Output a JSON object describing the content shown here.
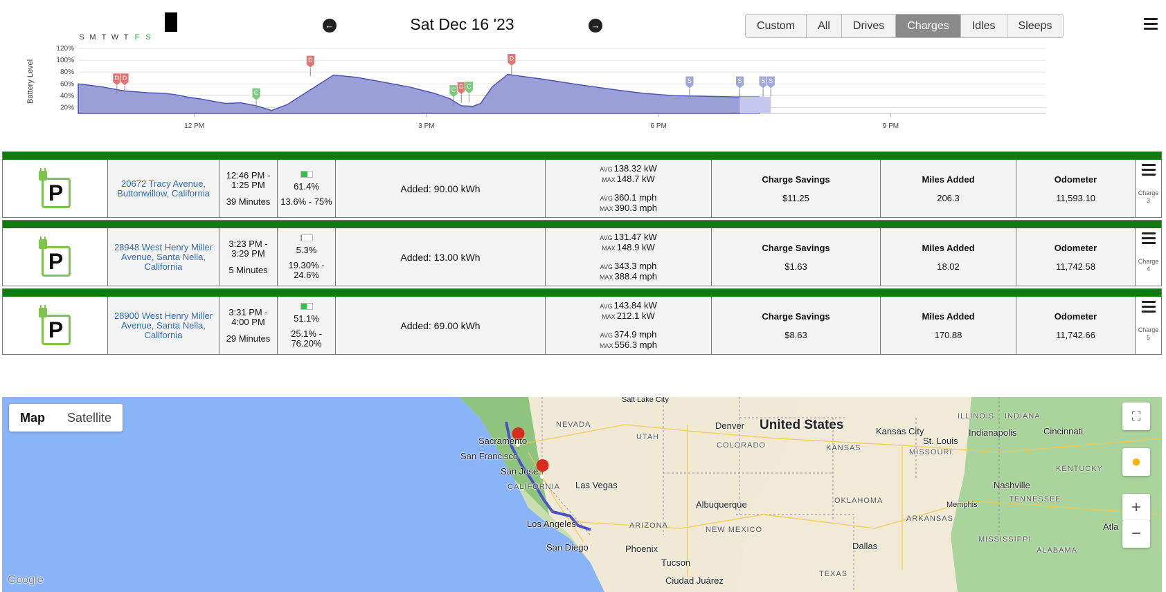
{
  "calendar": {
    "weekdays": [
      "S",
      "M",
      "T",
      "W",
      "T",
      "F",
      "S"
    ]
  },
  "header": {
    "date": "Sat Dec 16 '23",
    "prev_icon": "arrow-left-circle-icon",
    "next_icon": "arrow-right-circle-icon",
    "filters": [
      "Custom",
      "All",
      "Drives",
      "Charges",
      "Idles",
      "Sleeps"
    ],
    "active_filter": "Charges",
    "menu_icon": "hamburger-menu-icon"
  },
  "chart_data": {
    "type": "area",
    "ylabel": "Battery Level",
    "y_ticks": [
      "120%",
      "100%",
      "80%",
      "60%",
      "40%",
      "20%"
    ],
    "x_ticks": [
      "12 PM",
      "3 PM",
      "6 PM",
      "9 PM"
    ],
    "x_range_hours": [
      10.5,
      23.0
    ],
    "ylim": [
      10,
      120
    ],
    "series": [
      {
        "x": [
          10.5,
          10.8,
          11.1,
          11.4,
          11.6,
          11.75,
          11.9,
          12.1,
          12.4,
          12.6,
          12.8,
          13.0,
          13.2,
          13.5,
          13.8,
          14.1,
          14.4,
          14.8,
          15.1,
          15.3,
          15.45,
          15.6,
          15.7,
          15.85,
          16.05,
          16.5,
          17.0,
          17.5,
          17.8,
          18.2,
          18.6,
          19.0,
          19.3
        ],
        "y": [
          60,
          55,
          48,
          45,
          44,
          42,
          38,
          34,
          27,
          28,
          23,
          15,
          25,
          50,
          75,
          71,
          64,
          54,
          44,
          35,
          23,
          22,
          27,
          55,
          76,
          68,
          58,
          49,
          44,
          40,
          39,
          38,
          38
        ]
      }
    ],
    "markers": [
      {
        "label": "D",
        "x": 11.0,
        "y": 43,
        "color": "#e57373"
      },
      {
        "label": "D",
        "x": 11.1,
        "y": 43,
        "color": "#e57373"
      },
      {
        "label": "C",
        "x": 12.8,
        "y": 18,
        "color": "#81c784"
      },
      {
        "label": "D",
        "x": 13.5,
        "y": 73,
        "color": "#e57373"
      },
      {
        "label": "C",
        "x": 15.35,
        "y": 23,
        "color": "#81c784"
      },
      {
        "label": "D",
        "x": 15.45,
        "y": 28,
        "color": "#e57373"
      },
      {
        "label": "C",
        "x": 15.55,
        "y": 29,
        "color": "#81c784"
      },
      {
        "label": "D",
        "x": 16.1,
        "y": 76,
        "color": "#e57373"
      },
      {
        "label": "S",
        "x": 18.4,
        "y": 38,
        "color": "#9fa8da"
      },
      {
        "label": "S",
        "x": 19.05,
        "y": 38,
        "color": "#9fa8da"
      },
      {
        "label": "S",
        "x": 19.35,
        "y": 38,
        "color": "#9fa8da"
      },
      {
        "label": "S",
        "x": 19.45,
        "y": 38,
        "color": "#9fa8da"
      }
    ]
  },
  "charges": [
    {
      "location": "20672 Tracy Avenue, Buttonwillow, California",
      "time": "12:46 PM - 1:25 PM",
      "duration": "39 Minutes",
      "battery_pct": "61.4%",
      "battery_fill": 0.614,
      "battery_range": "13.6% - 75%",
      "added": "Added: 90.00 kWh",
      "avg_kw": "138.32 kW",
      "max_kw": "148.7 kW",
      "avg_mph": "360.1 mph",
      "max_mph": "390.3 mph",
      "savings_label": "Charge Savings",
      "savings": "$11.25",
      "miles_label": "Miles Added",
      "miles": "206.3",
      "odo_label": "Odometer",
      "odometer": "11,593.10",
      "charge_label": "Charge 3"
    },
    {
      "location": "28948 West Henry Miller Avenue, Santa Nella, California",
      "time": "3:23 PM - 3:29 PM",
      "duration": "5 Minutes",
      "battery_pct": "5.3%",
      "battery_fill": 0.053,
      "battery_range": "19.30% - 24.6%",
      "added": "Added: 13.00 kWh",
      "avg_kw": "131.47 kW",
      "max_kw": "148.9 kW",
      "avg_mph": "343.3 mph",
      "max_mph": "388.4 mph",
      "savings_label": "Charge Savings",
      "savings": "$1.63",
      "miles_label": "Miles Added",
      "miles": "18.02",
      "odo_label": "Odometer",
      "odometer": "11,742.58",
      "charge_label": "Charge 4"
    },
    {
      "location": "28900 West Henry Miller Avenue, Santa Nella, California",
      "time": "3:31 PM - 4:00 PM",
      "duration": "29 Minutes",
      "battery_pct": "51.1%",
      "battery_fill": 0.511,
      "battery_range": "25.1% - 76.20%",
      "added": "Added: 69.00 kWh",
      "avg_kw": "143.84 kW",
      "max_kw": "212.1 kW",
      "avg_mph": "374.9 mph",
      "max_mph": "556.3 mph",
      "savings_label": "Charge Savings",
      "savings": "$8.63",
      "miles_label": "Miles Added",
      "miles": "170.88",
      "odo_label": "Odometer",
      "odometer": "11,742.66",
      "charge_label": "Charge 5"
    }
  ],
  "labels": {
    "avg": "AVG",
    "max": "MAX"
  },
  "map": {
    "type_buttons": [
      "Map",
      "Satellite"
    ],
    "active_type": "Map",
    "fullscreen_icon": "fullscreen-icon",
    "pegman_icon": "pegman-icon",
    "zoom_in": "+",
    "zoom_out": "−",
    "cities": [
      "Salt Lake City",
      "Sacramento",
      "San Francisco",
      "San Jose",
      "Las Vegas",
      "Los Angeles",
      "San Diego",
      "Phoenix",
      "Tucson",
      "Albuquerque",
      "Denver",
      "Kansas City",
      "St. Louis",
      "Indianapolis",
      "Cincinnati",
      "Nashville",
      "Memphis",
      "Dallas",
      "Ciudad Juárez",
      "Atla"
    ],
    "states": [
      "NEVADA",
      "UTAH",
      "COLORADO",
      "KANSAS",
      "MISSOURI",
      "ILLINOIS",
      "INDIANA",
      "KENTUCKY",
      "TENNESSEE",
      "OKLAHOMA",
      "ARKANSAS",
      "MISSISSIPPI",
      "ALABAMA",
      "TEXAS",
      "CALIFORNIA",
      "ARIZONA",
      "NEW MEXICO"
    ],
    "country": "United States",
    "attribution": "Google"
  }
}
